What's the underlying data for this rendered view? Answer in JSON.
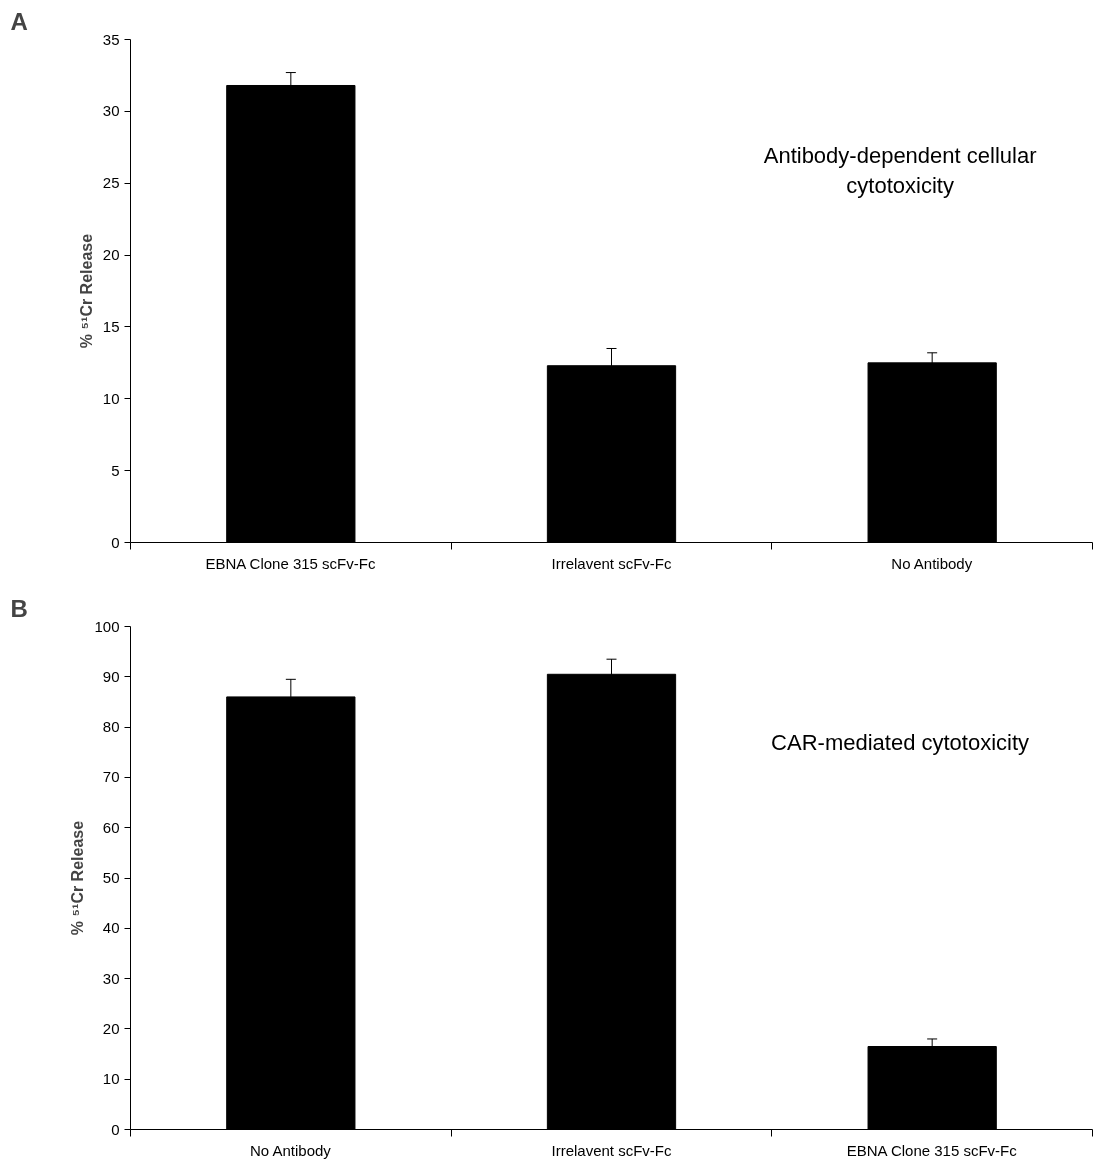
{
  "chart_data": [
    {
      "type": "bar",
      "ylabel": "% ⁵¹Cr Release",
      "categories": [
        "EBNA Clone 315 scFv-Fc",
        "Irrelavent scFv-Fc",
        "No Antibody"
      ],
      "values": [
        31.8,
        12.3,
        12.5
      ],
      "errors": [
        0.9,
        1.2,
        0.7
      ],
      "color": "#000000",
      "ylim": [
        0,
        35
      ],
      "yticks": [
        0,
        5,
        10,
        15,
        20,
        25,
        30,
        35
      ],
      "grid": false,
      "annotations": [
        "A",
        "Antibody-dependent cellular\ncytotoxicity"
      ]
    },
    {
      "type": "bar",
      "ylabel": "% ⁵¹Cr Release",
      "categories": [
        "No Antibody",
        "Irrelavent scFv-Fc",
        "EBNA Clone 315 scFv-Fc"
      ],
      "values": [
        86,
        90.5,
        16.5
      ],
      "errors": [
        3.5,
        3,
        1.5
      ],
      "color": "#000000",
      "ylim": [
        0,
        100
      ],
      "yticks": [
        0,
        10,
        20,
        30,
        40,
        50,
        60,
        70,
        80,
        90,
        100
      ],
      "grid": false,
      "annotations": [
        "B",
        "CAR-mediated cytotoxicity"
      ]
    }
  ]
}
